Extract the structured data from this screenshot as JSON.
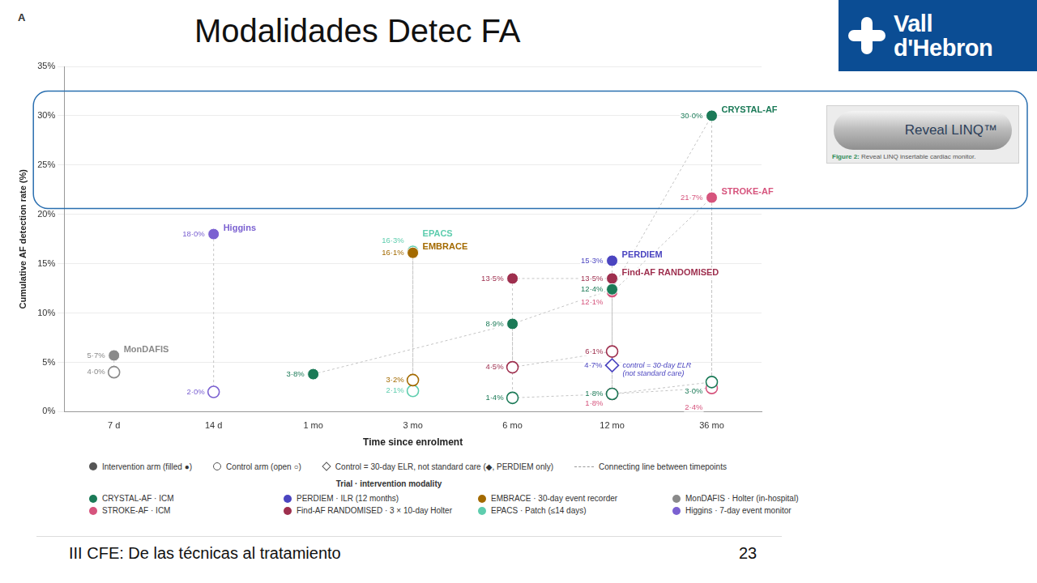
{
  "slide": {
    "panel": "A",
    "title": "Modalidades Detec FA",
    "logo": [
      "Vall",
      "d'Hebron"
    ],
    "footer": "III CFE: De las técnicas al tratamiento",
    "page": 23,
    "image": {
      "text": "Reveal LINQ™",
      "caption_label": "Figure 2:",
      "caption": "Reveal LINQ insertable cardiac monitor."
    }
  },
  "chart_data": {
    "type": "scatter",
    "x_label": "Time since enrolment",
    "y_label": "Cumulative AF detection rate (%)",
    "categories": [
      "7 d",
      "14 d",
      "1 mo",
      "3 mo",
      "6 mo",
      "12 mo",
      "36 mo"
    ],
    "ylim": [
      0,
      35
    ],
    "yticks": [
      {
        "value": 0,
        "label": "0%"
      },
      {
        "value": 5,
        "label": "5%"
      },
      {
        "value": 10,
        "label": "10%"
      },
      {
        "value": 15,
        "label": "15%"
      },
      {
        "value": 20,
        "label": "20%"
      },
      {
        "value": 25,
        "label": "25%"
      },
      {
        "value": 30,
        "label": "30%"
      },
      {
        "value": 35,
        "label": "35%"
      }
    ],
    "grid": true,
    "data_labels": true,
    "line_style": "dashed",
    "legend": "bottom",
    "key": [
      {
        "label": "Intervention arm (filled ●)",
        "marker": "filled"
      },
      {
        "label": "Control arm (open ○)",
        "marker": "open"
      },
      {
        "label": "Control = 30-day ELR, not standard care (◆, PERDIEM only)",
        "marker": "diamond"
      },
      {
        "label": "Connecting line between timepoints",
        "line_style": "dashed"
      }
    ],
    "legend_title": "Trial · intervention modality",
    "series": [
      {
        "name": "CRYSTAL-AF",
        "legend_label": "CRYSTAL-AF · ICM",
        "color": "#1b7a57",
        "intervention": {
          "marker": "filled",
          "x": [
            "1 mo",
            "6 mo",
            "12 mo",
            "36 mo"
          ],
          "values": [
            3.8,
            8.9,
            12.4,
            30.0
          ],
          "value_labels": [
            "3·8%",
            "8·9%",
            "12·4%",
            "30·0%"
          ]
        },
        "control": {
          "marker": "open",
          "x": [
            "6 mo",
            "12 mo",
            "36 mo"
          ],
          "values": [
            1.4,
            1.8,
            3.0
          ],
          "value_labels": [
            "1·4%",
            "1·8%",
            "3·0%"
          ]
        }
      },
      {
        "name": "PERDIEM",
        "legend_label": "PERDIEM · ILR (12 months)",
        "color": "#4b45c0",
        "intervention": {
          "marker": "filled",
          "x": [
            "12 mo"
          ],
          "values": [
            15.3
          ],
          "value_labels": [
            "15·3%"
          ]
        },
        "control": {
          "marker": "diamond",
          "x": [
            "12 mo"
          ],
          "values": [
            4.7
          ],
          "value_labels": [
            "4·7%"
          ],
          "annotation": [
            "control = 30-day ELR",
            "(not standard care)"
          ]
        }
      },
      {
        "name": "EMBRACE",
        "legend_label": "EMBRACE · 30-day event recorder",
        "color": "#a36a00",
        "intervention": {
          "marker": "filled",
          "x": [
            "3 mo"
          ],
          "values": [
            16.1
          ],
          "value_labels": [
            "16·1%"
          ]
        },
        "control": {
          "marker": "open",
          "x": [
            "3 mo"
          ],
          "values": [
            3.2
          ],
          "value_labels": [
            "3·2%"
          ]
        }
      },
      {
        "name": "MonDAFIS",
        "legend_label": "MonDAFIS · Holter (in-hospital)",
        "color": "#8a8a8a",
        "intervention": {
          "marker": "filled",
          "x": [
            "7 d"
          ],
          "values": [
            5.7
          ],
          "value_labels": [
            "5·7%"
          ]
        },
        "control": {
          "marker": "open",
          "x": [
            "7 d"
          ],
          "values": [
            4.0
          ],
          "value_labels": [
            "4·0%"
          ]
        }
      },
      {
        "name": "STROKE-AF",
        "legend_label": "STROKE-AF · ICM",
        "color": "#d6547d",
        "intervention": {
          "marker": "filled",
          "x": [
            "12 mo",
            "36 mo"
          ],
          "values": [
            12.1,
            21.7
          ],
          "value_labels": [
            "12·1%",
            "21·7%"
          ]
        },
        "control": {
          "marker": "open",
          "x": [
            "12 mo",
            "36 mo"
          ],
          "values": [
            1.8,
            2.4
          ],
          "value_labels": [
            "1·8%",
            "2·4%"
          ]
        }
      },
      {
        "name": "Find-AF RANDOMISED",
        "legend_label": "Find-AF RANDOMISED · 3 × 10-day Holter",
        "color": "#9e2f4e",
        "intervention": {
          "marker": "filled",
          "x": [
            "6 mo",
            "12 mo"
          ],
          "values": [
            13.5,
            13.5
          ],
          "value_labels": [
            "13·5%",
            "13·5%"
          ]
        },
        "control": {
          "marker": "open",
          "x": [
            "6 mo",
            "12 mo"
          ],
          "values": [
            4.5,
            6.1
          ],
          "value_labels": [
            "4·5%",
            "6·1%"
          ]
        }
      },
      {
        "name": "EPACS",
        "legend_label": "EPACS · Patch (≤14 days)",
        "color": "#5ecdae",
        "intervention": {
          "marker": "filled",
          "x": [
            "3 mo"
          ],
          "values": [
            16.3
          ],
          "value_labels": [
            "16·3%"
          ]
        },
        "control": {
          "marker": "open",
          "x": [
            "3 mo"
          ],
          "values": [
            2.1
          ],
          "value_labels": [
            "2·1%"
          ]
        }
      },
      {
        "name": "Higgins",
        "legend_label": "Higgins · 7-day event monitor",
        "color": "#7b61d1",
        "intervention": {
          "marker": "filled",
          "x": [
            "14 d"
          ],
          "values": [
            18.0
          ],
          "value_labels": [
            "18·0%"
          ]
        },
        "control": {
          "marker": "open",
          "x": [
            "14 d"
          ],
          "values": [
            2.0
          ],
          "value_labels": [
            "2·0%"
          ]
        }
      }
    ]
  }
}
